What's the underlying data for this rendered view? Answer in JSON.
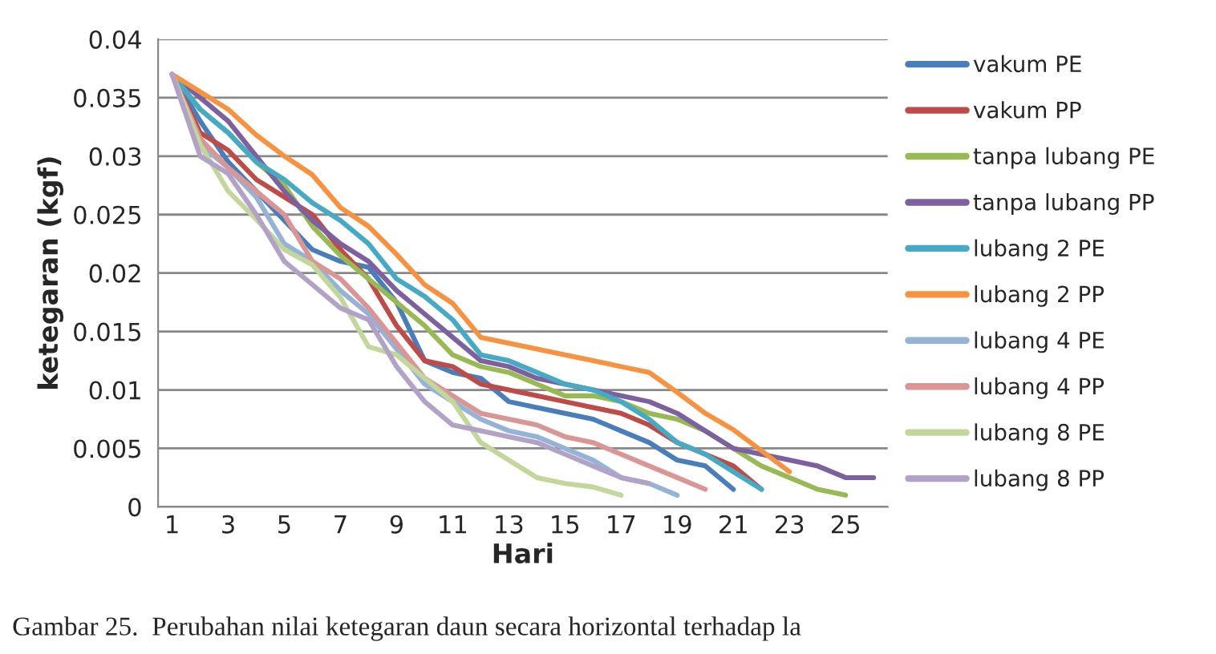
{
  "chart_data": {
    "type": "line",
    "xlabel": "Hari",
    "ylabel": "ketegaran (kgf)",
    "categories": [
      "1",
      null,
      "3",
      null,
      "5",
      null,
      "7",
      null,
      "9",
      null,
      "11",
      null,
      "13",
      null,
      "15",
      null,
      "17",
      null,
      "19",
      null,
      "21",
      null,
      "23",
      null,
      "25",
      null
    ],
    "ylim": [
      0,
      0.04
    ],
    "yticks": [
      0,
      0.005,
      0.01,
      0.015,
      0.02,
      0.025,
      0.03,
      0.035,
      0.04
    ],
    "grid": "y",
    "legend": "right",
    "marker": "none",
    "line_style": "solid",
    "annotations": [
      "Gambar 25.  Perubahan nilai ketegaran daun secara horizontal terhadap la"
    ],
    "series": [
      {
        "name": "vakum PE",
        "color": "#4a7ebb",
        "values": [
          0.037,
          0.033,
          0.0295,
          0.027,
          0.0245,
          0.022,
          0.021,
          0.0205,
          0.0175,
          0.0125,
          0.0115,
          0.011,
          0.009,
          0.0085,
          0.008,
          0.0075,
          0.0065,
          0.0055,
          0.004,
          0.0035,
          0.0015,
          null,
          null,
          null,
          null,
          null
        ]
      },
      {
        "name": "vakum PP",
        "color": "#be4b48",
        "values": [
          0.037,
          0.032,
          0.0305,
          0.028,
          0.0265,
          0.025,
          0.022,
          0.0195,
          0.0155,
          0.0125,
          0.012,
          0.0105,
          0.01,
          0.0095,
          0.009,
          0.0085,
          0.008,
          0.007,
          0.0055,
          0.0045,
          0.0035,
          0.0015,
          null,
          null,
          null,
          null
        ]
      },
      {
        "name": "tanpa lubang PE",
        "color": "#98b954",
        "values": [
          0.037,
          0.034,
          0.032,
          0.0295,
          0.0275,
          0.024,
          0.0215,
          0.0195,
          0.0175,
          0.0155,
          0.013,
          0.012,
          0.0115,
          0.0105,
          0.0095,
          0.0095,
          0.009,
          0.008,
          0.0075,
          0.0065,
          0.005,
          0.0035,
          0.0025,
          0.0015,
          0.001,
          null
        ]
      },
      {
        "name": "tanpa lubang PP",
        "color": "#7d60a0",
        "values": [
          0.037,
          0.035,
          0.033,
          0.03,
          0.027,
          0.0245,
          0.0225,
          0.021,
          0.0185,
          0.0165,
          0.0145,
          0.0125,
          0.012,
          0.011,
          0.0105,
          0.01,
          0.0095,
          0.009,
          0.008,
          0.0065,
          0.005,
          0.0045,
          0.004,
          0.0035,
          0.0025,
          0.0025
        ]
      },
      {
        "name": "lubang 2 PE",
        "color": "#46aac5",
        "values": [
          0.037,
          0.034,
          0.032,
          0.0295,
          0.028,
          0.026,
          0.0245,
          0.0225,
          0.0195,
          0.018,
          0.016,
          0.013,
          0.0125,
          0.0115,
          0.0105,
          0.01,
          0.009,
          0.0075,
          0.0055,
          0.0045,
          0.003,
          0.0015,
          null,
          null,
          null,
          null
        ]
      },
      {
        "name": "lubang 2 PP",
        "color": "#f69240",
        "values": [
          0.037,
          0.0355,
          0.034,
          0.0318,
          0.03,
          0.0284,
          0.0256,
          0.024,
          0.0216,
          0.019,
          0.0174,
          0.0145,
          0.014,
          0.0135,
          0.013,
          0.0125,
          0.012,
          0.0115,
          0.0098,
          0.008,
          0.0066,
          0.0048,
          0.003,
          null,
          null,
          null
        ]
      },
      {
        "name": "lubang 4 PE",
        "color": "#95b3d7",
        "values": [
          0.037,
          0.031,
          0.029,
          0.0265,
          0.0225,
          0.021,
          0.0185,
          0.0165,
          0.0135,
          0.0105,
          0.009,
          0.0075,
          0.0065,
          0.006,
          0.005,
          0.004,
          0.0025,
          0.002,
          0.001,
          null,
          null,
          null,
          null,
          null,
          null,
          null
        ]
      },
      {
        "name": "lubang 4 PP",
        "color": "#d99694",
        "values": [
          0.037,
          0.0315,
          0.029,
          0.027,
          0.025,
          0.021,
          0.0195,
          0.017,
          0.014,
          0.011,
          0.0095,
          0.008,
          0.0075,
          0.007,
          0.006,
          0.0055,
          0.0045,
          0.0035,
          0.0025,
          0.0015,
          null,
          null,
          null,
          null,
          null,
          null
        ]
      },
      {
        "name": "lubang 8 PE",
        "color": "#c3d69b",
        "values": [
          0.037,
          0.031,
          0.027,
          0.0246,
          0.022,
          0.0207,
          0.0179,
          0.0137,
          0.013,
          0.011,
          0.009,
          0.0055,
          0.004,
          0.0025,
          0.002,
          0.0017,
          0.001,
          null,
          null,
          null,
          null,
          null,
          null,
          null,
          null,
          null
        ]
      },
      {
        "name": "lubang 8 PP",
        "color": "#b3a2c7",
        "values": [
          0.037,
          0.03,
          0.0285,
          0.025,
          0.021,
          0.019,
          0.017,
          0.016,
          0.012,
          0.009,
          0.007,
          0.0065,
          0.006,
          0.0055,
          0.0045,
          0.0035,
          0.0025,
          0.002,
          null,
          null,
          null,
          null,
          null,
          null,
          null,
          null
        ]
      }
    ]
  }
}
